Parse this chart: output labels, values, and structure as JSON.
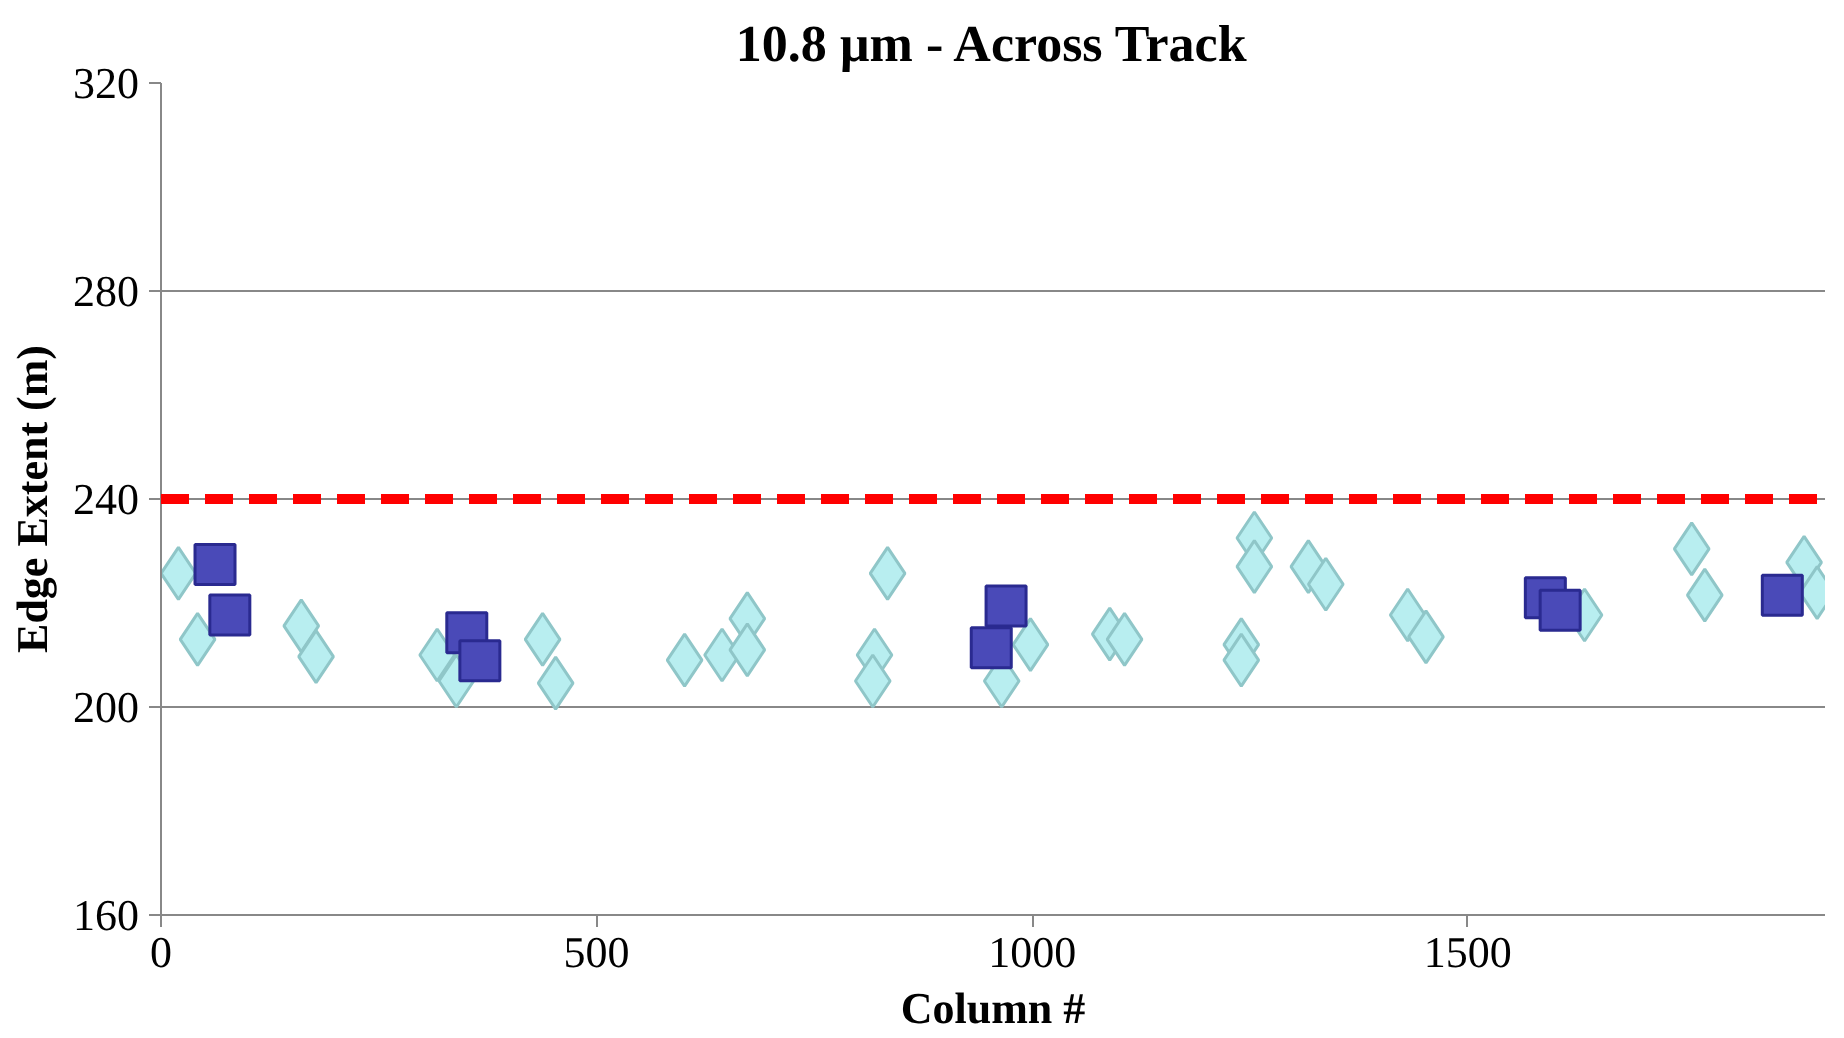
{
  "chart_data": {
    "type": "scatter",
    "title": "10.8 µm - Across Track",
    "xlabel": "Column #",
    "ylabel": "Edge Extent (m)",
    "xlim": [
      0,
      1910
    ],
    "ylim": [
      160,
      320
    ],
    "xticks": [
      0,
      500,
      1000,
      1500
    ],
    "yticks": [
      160,
      200,
      240,
      280,
      320
    ],
    "grid": "y",
    "ref_lines": [
      {
        "axis": "y",
        "value": 240,
        "color": "#ff0000",
        "line_style": "dashed"
      }
    ],
    "series": [
      {
        "color": "#b8eef0",
        "marker": "diamond",
        "x": [
          20,
          42,
          161,
          178,
          317,
          339,
          438,
          453,
          601,
          644,
          673,
          673,
          834,
          819,
          817,
          965,
          998,
          1089,
          1106,
          1240,
          1240,
          1255,
          1255,
          1317,
          1337,
          1431,
          1452,
          1634,
          1757,
          1772,
          1886,
          1901
        ],
        "values": [
          225.7,
          213,
          215.6,
          209.7,
          210,
          205,
          213,
          204.6,
          209,
          210,
          217,
          211,
          225.7,
          210,
          205,
          205,
          212,
          214,
          213,
          212,
          209,
          232.5,
          227,
          227,
          223.6,
          217.7,
          213.5,
          217.7,
          230.4,
          221.5,
          227.8,
          222
        ]
      },
      {
        "color": "#4a4ab8",
        "marker": "square",
        "x": [
          62,
          79,
          351,
          366,
          970,
          953,
          1589,
          1606,
          1861
        ],
        "values": [
          227.4,
          217.7,
          214.3,
          208.9,
          219.4,
          211.4,
          221,
          218.6,
          221.5
        ]
      }
    ]
  }
}
